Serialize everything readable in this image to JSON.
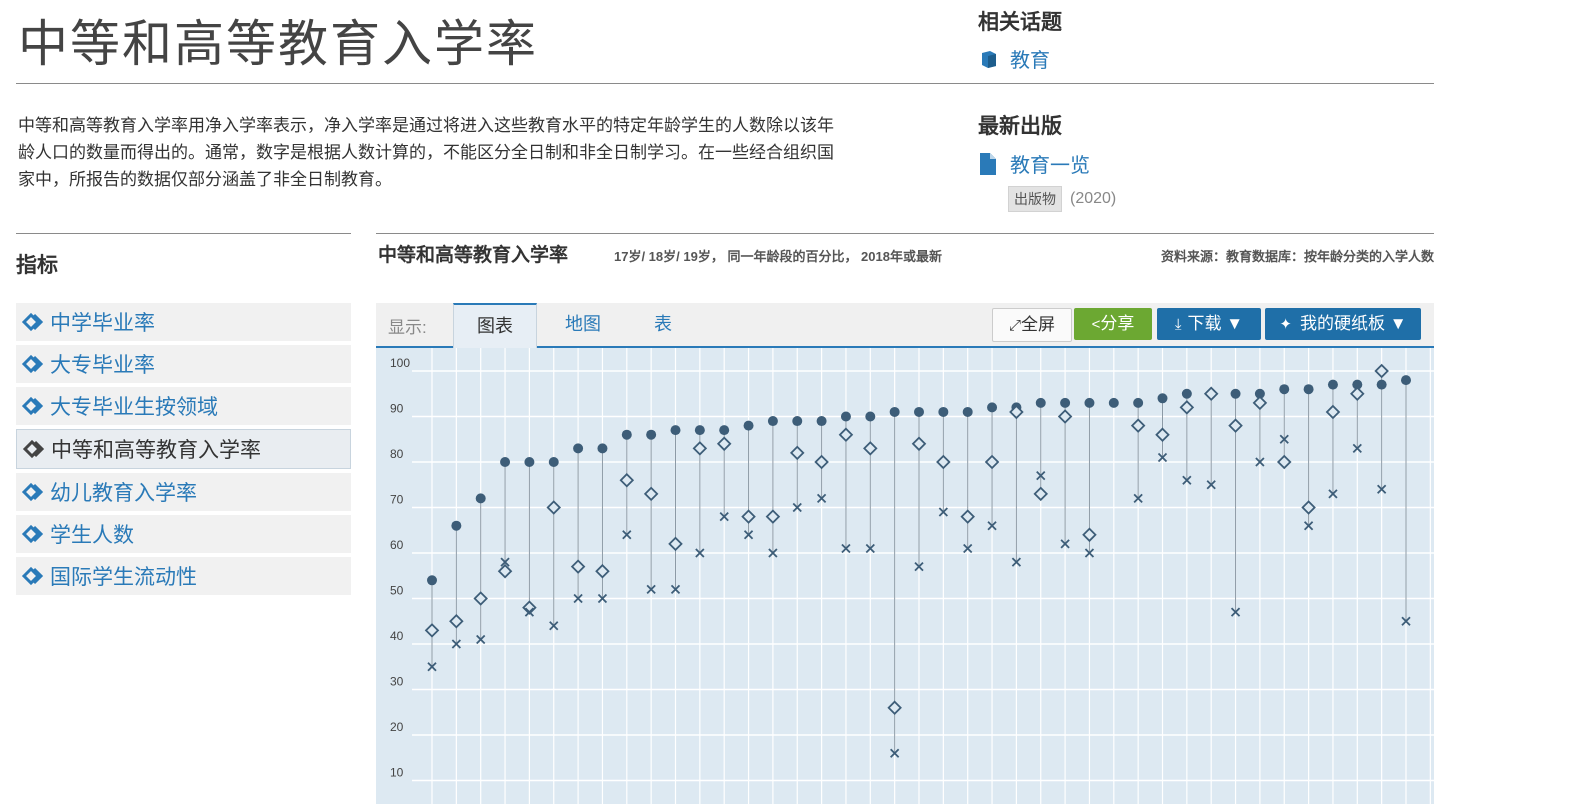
{
  "page": {
    "title": "中等和高等教育入学率",
    "description": "中等和高等教育入学率用净入学率表示，净入学率是通过将进入这些教育水平的特定年龄学生的人数除以该年龄人口的数量而得出的。通常，数字是根据人数计算的，不能区分全日制和非全日制学习。在一些经合组织国家中，所报告的数据仅部分涵盖了非全日制教育。"
  },
  "related": {
    "heading": "相关话题",
    "topic": "教育"
  },
  "latest": {
    "heading": "最新出版",
    "title": "教育一览",
    "badge": "出版物",
    "year": "(2020)"
  },
  "indicators": {
    "heading": "指标",
    "items": [
      {
        "label": "中学毕业率",
        "active": false
      },
      {
        "label": "大专毕业率",
        "active": false
      },
      {
        "label": "大专毕业生按领域",
        "active": false
      },
      {
        "label": "中等和高等教育入学率",
        "active": true
      },
      {
        "label": "幼儿教育入学率",
        "active": false
      },
      {
        "label": "学生人数",
        "active": false
      },
      {
        "label": "国际学生流动性",
        "active": false
      }
    ]
  },
  "chart_header": {
    "title": "中等和高等教育入学率",
    "subtitle": "17岁/ 18岁/ 19岁， 同一年龄段的百分比， 2018年或最新",
    "source": "资料来源：教育数据库：按年龄分类的入学人数"
  },
  "toolbar": {
    "show_label": "显示:",
    "tabs": [
      "图表",
      "地图",
      "表"
    ],
    "fullscreen": "全屏",
    "share": "分享",
    "download": "下载 ▼",
    "dashboard": "我的硬纸板 ▼"
  },
  "colors": {
    "accent": "#2a7ab8",
    "marker": "#3d5d78",
    "plot_bg": "#dde9f2",
    "share": "#6ca832"
  },
  "chart_data": {
    "type": "scatter",
    "title": "中等和高等教育入学率",
    "yticks": [
      10,
      20,
      30,
      40,
      50,
      60,
      70,
      80,
      90,
      100
    ],
    "ylim": [
      7,
      102
    ],
    "legend": [
      "17岁",
      "18岁",
      "19岁"
    ],
    "series": [
      {
        "name": "17岁",
        "marker": "circle",
        "values": [
          54,
          66,
          72,
          80,
          80,
          80,
          83,
          83,
          86,
          86,
          87,
          87,
          87,
          88,
          89,
          89,
          89,
          90,
          90,
          91,
          91,
          91,
          91,
          92,
          92,
          93,
          93,
          93,
          93,
          93,
          94,
          95,
          95,
          95,
          95,
          96,
          96,
          97,
          97,
          97,
          98,
          null
        ]
      },
      {
        "name": "18岁",
        "marker": "diamond",
        "values": [
          43,
          45,
          50,
          56,
          48,
          70,
          57,
          56,
          76,
          73,
          62,
          83,
          84,
          68,
          68,
          82,
          80,
          86,
          83,
          26,
          84,
          80,
          68,
          80,
          91,
          73,
          90,
          64,
          null,
          88,
          86,
          92,
          95,
          88,
          93,
          80,
          70,
          91,
          95,
          100,
          null,
          null
        ]
      },
      {
        "name": "19岁",
        "marker": "cross",
        "values": [
          35,
          40,
          41,
          58,
          47,
          44,
          50,
          50,
          64,
          52,
          52,
          60,
          68,
          64,
          60,
          70,
          72,
          61,
          61,
          16,
          57,
          69,
          61,
          66,
          58,
          77,
          62,
          60,
          null,
          72,
          81,
          76,
          75,
          47,
          80,
          85,
          66,
          73,
          83,
          74,
          45,
          null
        ]
      }
    ]
  }
}
